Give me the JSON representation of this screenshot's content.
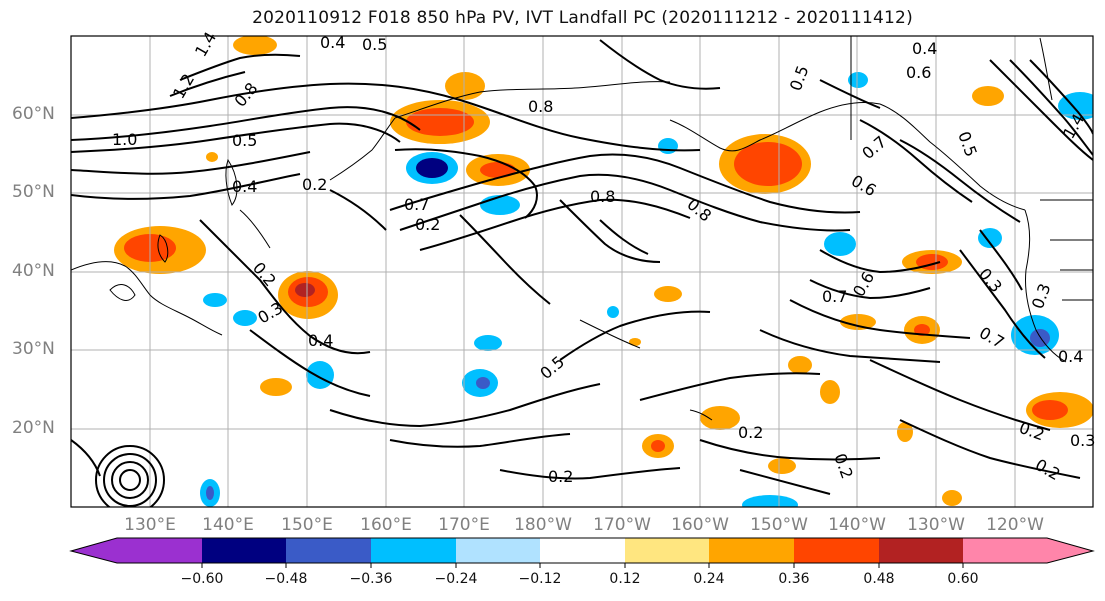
{
  "title": "2020110912 F018 850 hPa PV, IVT Landfall PC (2020111212 - 2020111412)",
  "lat_labels": [
    "60°N",
    "50°N",
    "40°N",
    "30°N",
    "20°N"
  ],
  "lon_labels": [
    "130°E",
    "140°E",
    "150°E",
    "160°E",
    "170°E",
    "180°W",
    "170°W",
    "160°W",
    "150°W",
    "140°W",
    "130°W",
    "120°W"
  ],
  "colorbar": {
    "ticks": [
      "−0.60",
      "−0.48",
      "−0.36",
      "−0.24",
      "−0.12",
      "0.12",
      "0.24",
      "0.36",
      "0.48",
      "0.60"
    ],
    "colors": [
      "#9b30d0",
      "#000080",
      "#3a5bc7",
      "#00bfff",
      "#b0e2ff",
      "#ffffff",
      "#ffe680",
      "#ffa500",
      "#ff4500",
      "#b22222",
      "#ff85aa"
    ]
  },
  "contour_labels": [
    "1.4",
    "1.2",
    "0.5",
    "0.4",
    "1.0",
    "0.8",
    "0.5",
    "0.4",
    "0.2",
    "0.8",
    "0.7",
    "0.8",
    "0.8",
    "0.5",
    "0.7",
    "0.6",
    "0.6",
    "0.5",
    "0.4",
    "1.4",
    "0.3",
    "0.2",
    "0.2",
    "0.3",
    "0.4",
    "0.7",
    "0.6",
    "0.3",
    "0.7",
    "0.4",
    "0.5",
    "0.2",
    "0.2",
    "0.2",
    "0.2",
    "0.3",
    "0.2"
  ]
}
